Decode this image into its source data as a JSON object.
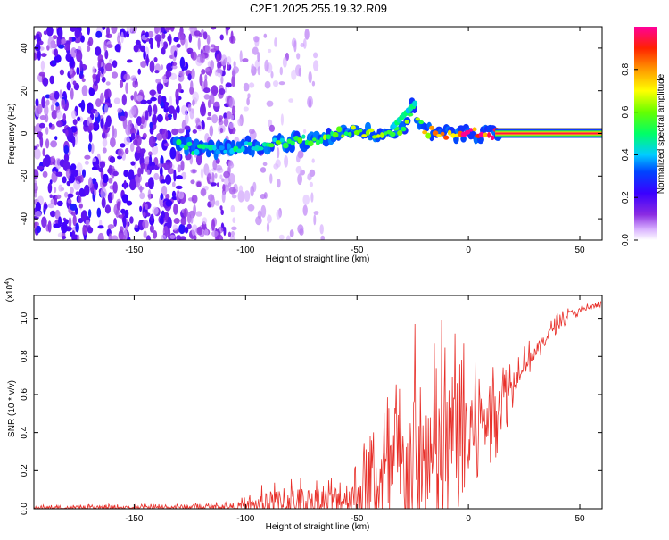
{
  "title": "C2E1.2025.255.19.32.R09",
  "colors": {
    "line": "#e8302a",
    "axis": "#000000",
    "frame": "#000000",
    "signal_core": "#ff1a10"
  },
  "chart_data": [
    {
      "type": "heatmap",
      "title": "C2E1.2025.255.19.32.R09",
      "xlabel": "Height of straight line (km)",
      "ylabel": "Frequency (Hz)",
      "xlim": [
        -195,
        60
      ],
      "ylim": [
        -50,
        50
      ],
      "xticks": [
        -150,
        -100,
        -50,
        0,
        50
      ],
      "yticks": [
        -40,
        -20,
        0,
        20,
        40
      ],
      "colorbar": {
        "label": "Normalized spectral amplitude",
        "range": [
          0,
          1
        ],
        "ticks": [
          0.0,
          0.2,
          0.4,
          0.6,
          0.8
        ],
        "colormap": [
          "#ffffff",
          "#cc99ff",
          "#7a00ff",
          "#0000ff",
          "#00ffff",
          "#00ff00",
          "#ffff00",
          "#ff8000",
          "#ff0000",
          "#ff00aa"
        ]
      },
      "signal_track": [
        {
          "x": -130,
          "y": -6,
          "amp": 0.45
        },
        {
          "x": -120,
          "y": -8,
          "amp": 0.5
        },
        {
          "x": -110,
          "y": -7,
          "amp": 0.45
        },
        {
          "x": -100,
          "y": -6,
          "amp": 0.5
        },
        {
          "x": -90,
          "y": -5,
          "amp": 0.5
        },
        {
          "x": -80,
          "y": -4,
          "amp": 0.55
        },
        {
          "x": -70,
          "y": -3,
          "amp": 0.55
        },
        {
          "x": -60,
          "y": 0,
          "amp": 0.6
        },
        {
          "x": -50,
          "y": 1,
          "amp": 0.6
        },
        {
          "x": -40,
          "y": 0,
          "amp": 0.6
        },
        {
          "x": -30,
          "y": 1,
          "amp": 0.6
        },
        {
          "x": -25,
          "y": 13,
          "amp": 0.55
        },
        {
          "x": -20,
          "y": 1,
          "amp": 0.7
        },
        {
          "x": -10,
          "y": 0,
          "amp": 0.85
        },
        {
          "x": 0,
          "y": 0,
          "amp": 0.9
        },
        {
          "x": 10,
          "y": 0,
          "amp": 0.95
        },
        {
          "x": 60,
          "y": 0,
          "amp": 1.0
        }
      ]
    },
    {
      "type": "line",
      "xlabel": "Height of straight line (km)",
      "ylabel": "SNR (10 * v/v)",
      "yscale_label": "(x10",
      "yscale_exponent": "4",
      "yscale_suffix": ")",
      "xlim": [
        -195,
        60
      ],
      "ylim": [
        0,
        1.12
      ],
      "xticks": [
        -150,
        -100,
        -50,
        0,
        50
      ],
      "yticks": [
        0.0,
        0.2,
        0.4,
        0.6,
        0.8,
        1.0
      ],
      "envelope": {
        "x": [
          -195,
          -150,
          -120,
          -110,
          -100,
          -90,
          -80,
          -70,
          -60,
          -50,
          -45,
          -40,
          -35,
          -30,
          -25,
          -20,
          -15,
          -10,
          -5,
          0,
          5,
          10,
          15,
          20,
          25,
          30,
          35,
          40,
          45,
          50,
          55,
          60
        ],
        "baseline": [
          0.005,
          0.005,
          0.01,
          0.01,
          0.015,
          0.03,
          0.04,
          0.04,
          0.05,
          0.07,
          0.12,
          0.15,
          0.17,
          0.19,
          0.2,
          0.2,
          0.22,
          0.3,
          0.38,
          0.36,
          0.45,
          0.5,
          0.6,
          0.66,
          0.78,
          0.82,
          0.9,
          0.98,
          1.02,
          1.04,
          1.06,
          1.07
        ],
        "amplitude": [
          0.015,
          0.02,
          0.02,
          0.03,
          0.05,
          0.12,
          0.15,
          0.14,
          0.14,
          0.2,
          0.3,
          0.45,
          0.5,
          0.55,
          0.8,
          0.5,
          0.7,
          0.6,
          0.45,
          0.4,
          0.35,
          0.3,
          0.25,
          0.15,
          0.1,
          0.08,
          0.06,
          0.05,
          0.04,
          0.03,
          0.03,
          0.02
        ]
      },
      "spikes": [
        {
          "x": -24,
          "y": 0.97
        },
        {
          "x": -12,
          "y": 0.99
        },
        {
          "x": -6,
          "y": 0.92
        },
        {
          "x": -2,
          "y": 0.87
        }
      ]
    }
  ]
}
